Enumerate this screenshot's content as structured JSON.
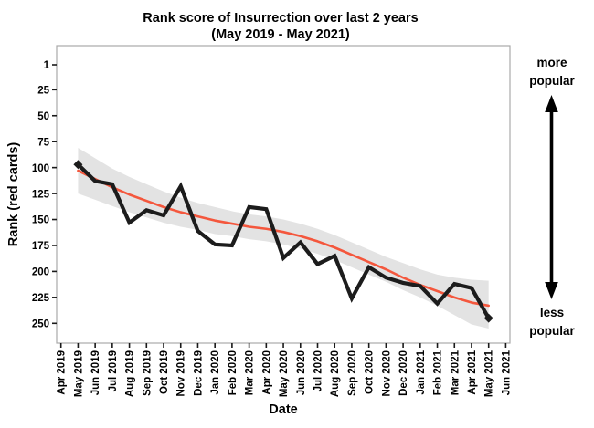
{
  "title": {
    "line1": "Rank score of Insurrection over last 2 years",
    "line2": "(May 2019 - May 2021)"
  },
  "axes": {
    "x_label": "Date",
    "y_label": "Rank (red cards)"
  },
  "annotations": {
    "top_line1": "more",
    "top_line2": "popular",
    "bottom_line1": "less",
    "bottom_line2": "popular",
    "arrow": "double-headed-vertical-arrow"
  },
  "colors": {
    "rank_line": "#1c1c1c",
    "trend_line": "#f4573d",
    "confidence_band": "#e3e3e3",
    "panel_border": "#a9a9a9",
    "tick": "#1a1a1a"
  },
  "chart_data": {
    "type": "line",
    "title": "Rank score of Insurrection over last 2 years (May 2019 - May 2021)",
    "xlabel": "Date",
    "ylabel": "Rank (red cards)",
    "y_axis_inverted": true,
    "y_ticks": [
      1,
      25,
      50,
      75,
      100,
      125,
      150,
      175,
      200,
      225,
      250
    ],
    "ylim": [
      1,
      250
    ],
    "grid": false,
    "legend": false,
    "x_tick_labels": [
      "Apr 2019",
      "May 2019",
      "Jun 2019",
      "Jul 2019",
      "Aug 2019",
      "Sep 2019",
      "Oct 2019",
      "Nov 2019",
      "Dec 2019",
      "Jan 2020",
      "Feb 2020",
      "Mar 2020",
      "Apr 2020",
      "May 2020",
      "Jun 2020",
      "Jul 2020",
      "Aug 2020",
      "Sep 2020",
      "Oct 2020",
      "Nov 2020",
      "Dec 2020",
      "Jan 2021",
      "Feb 2021",
      "Mar 2021",
      "Apr 2021",
      "May 2021",
      "Jun 2021"
    ],
    "data_months": [
      "May 2019",
      "Jun 2019",
      "Jul 2019",
      "Aug 2019",
      "Sep 2019",
      "Oct 2019",
      "Nov 2019",
      "Dec 2019",
      "Jan 2020",
      "Feb 2020",
      "Mar 2020",
      "Apr 2020",
      "May 2020",
      "Jun 2020",
      "Jul 2020",
      "Aug 2020",
      "Sep 2020",
      "Oct 2020",
      "Nov 2020",
      "Dec 2020",
      "Jan 2021",
      "Feb 2021",
      "Mar 2021",
      "Apr 2021",
      "May 2021"
    ],
    "series": [
      {
        "name": "monthly-rank",
        "style": "thick-black-line",
        "values": [
          97,
          113,
          116,
          153,
          141,
          146,
          118,
          161,
          174,
          175,
          138,
          140,
          187,
          172,
          193,
          185,
          226,
          196,
          206,
          211,
          214,
          231,
          212,
          216,
          245
        ]
      },
      {
        "name": "smoothed-trend",
        "style": "red-smooth-line",
        "values": [
          103,
          111,
          119,
          126,
          132,
          138,
          143,
          147,
          151,
          154,
          157,
          159,
          162,
          166,
          171,
          177,
          184,
          191,
          198,
          206,
          213,
          219,
          225,
          230,
          233
        ]
      },
      {
        "name": "confidence-band-upper",
        "style": "gray-band-edge",
        "values": [
          81,
          91,
          101,
          109,
          116,
          123,
          129,
          134,
          138,
          142,
          145,
          147,
          150,
          154,
          159,
          165,
          172,
          179,
          186,
          192,
          198,
          203,
          206,
          208,
          209
        ]
      },
      {
        "name": "confidence-band-lower",
        "style": "gray-band-edge",
        "values": [
          125,
          131,
          137,
          143,
          148,
          153,
          157,
          160,
          164,
          166,
          169,
          171,
          174,
          178,
          183,
          189,
          196,
          203,
          210,
          218,
          225,
          233,
          242,
          251,
          255
        ]
      }
    ]
  }
}
